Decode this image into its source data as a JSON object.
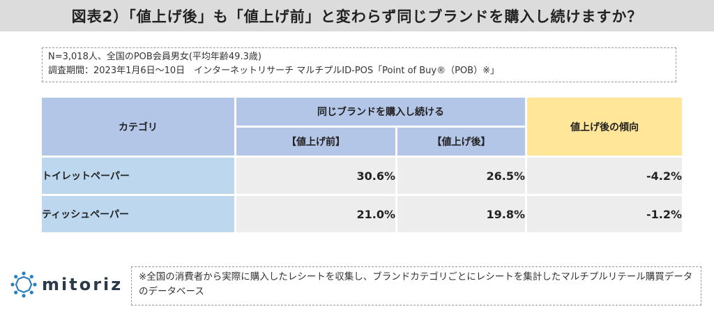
{
  "title": "図表2）「値上げ後」も「値上げ前」と変わらず同じブランドを購入し続けますか？",
  "meta": {
    "line1": "N=3,018人、全国のPOB会員男女(平均年齢49.3歳)",
    "line2": "調査期間：2023年1月6日～10日　インターネットリサーチ マルチプルID-POS「Point of Buy®（POB）※」"
  },
  "table": {
    "header_category": "カテゴリ",
    "header_group": "同じブランドを購入し続ける",
    "header_before": "【値上げ前】",
    "header_after": "【値上げ後】",
    "header_trend": "値上げ後の傾向",
    "rows": [
      {
        "category": "トイレットペーパー",
        "before": "30.6%",
        "after": "26.5%",
        "trend": "-4.2%"
      },
      {
        "category": "ティッシュペーパー",
        "before": "21.0%",
        "after": "19.8%",
        "trend": "-1.2%"
      }
    ]
  },
  "logo": {
    "text": "mitoriz",
    "icon": "mitoriz-logo-icon",
    "color": "#2a7fc1"
  },
  "note": "※全国の消費者から実際に購入したレシートを収集し、ブランドカテゴリごとにレシートを集計したマルチプルリテール購買データのデータベース"
}
